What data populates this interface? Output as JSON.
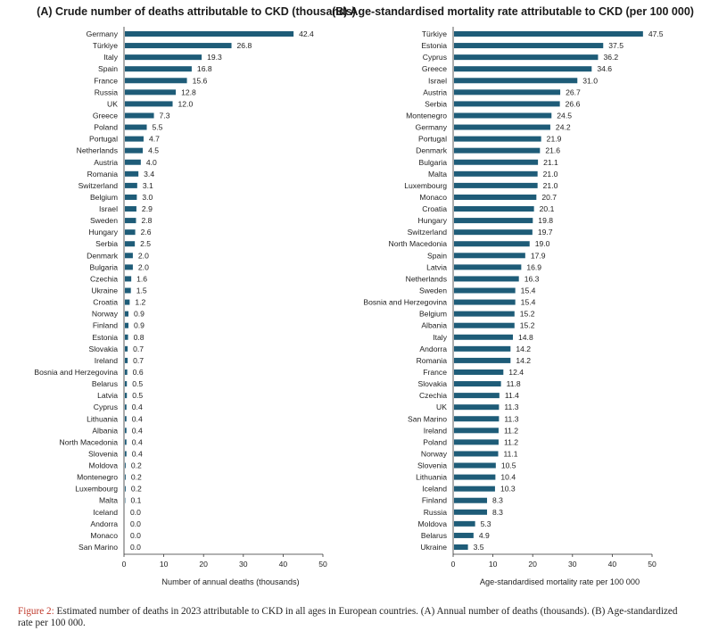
{
  "colors": {
    "bar": "#1e5c78",
    "axis": "#333333",
    "caption_label": "#c0392b"
  },
  "chart_data": [
    {
      "type": "bar",
      "orientation": "horizontal",
      "title": "(A) Crude number of deaths attributable to CKD (thousands)",
      "xlabel": "Number of annual deaths (thousands)",
      "xlim": [
        0,
        50
      ],
      "xticks": [
        0,
        10,
        20,
        30,
        40,
        50
      ],
      "grid": false,
      "categories": [
        "Germany",
        "Türkiye",
        "Italy",
        "Spain",
        "France",
        "Russia",
        "UK",
        "Greece",
        "Poland",
        "Portugal",
        "Netherlands",
        "Austria",
        "Romania",
        "Switzerland",
        "Belgium",
        "Israel",
        "Sweden",
        "Hungary",
        "Serbia",
        "Denmark",
        "Bulgaria",
        "Czechia",
        "Ukraine",
        "Croatia",
        "Norway",
        "Finland",
        "Estonia",
        "Slovakia",
        "Ireland",
        "Bosnia and Herzegovina",
        "Belarus",
        "Latvia",
        "Cyprus",
        "Lithuania",
        "Albania",
        "North Macedonia",
        "Slovenia",
        "Moldova",
        "Montenegro",
        "Luxembourg",
        "Malta",
        "Iceland",
        "Andorra",
        "Monaco",
        "San Marino"
      ],
      "values": [
        42.4,
        26.8,
        19.3,
        16.8,
        15.6,
        12.8,
        12.0,
        7.3,
        5.5,
        4.7,
        4.5,
        4.0,
        3.4,
        3.1,
        3.0,
        2.9,
        2.8,
        2.6,
        2.5,
        2.0,
        2.0,
        1.6,
        1.5,
        1.2,
        0.9,
        0.9,
        0.8,
        0.7,
        0.7,
        0.6,
        0.5,
        0.5,
        0.4,
        0.4,
        0.4,
        0.4,
        0.4,
        0.2,
        0.2,
        0.2,
        0.1,
        0.0,
        0.0,
        0.0,
        0.0
      ],
      "value_labels": [
        "42.4",
        "26.8",
        "19.3",
        "16.8",
        "15.6",
        "12.8",
        "12.0",
        "7.3",
        "5.5",
        "4.7",
        "4.5",
        "4.0",
        "3.4",
        "3.1",
        "3.0",
        "2.9",
        "2.8",
        "2.6",
        "2.5",
        "2.0",
        "2.0",
        "1.6",
        "1.5",
        "1.2",
        "0.9",
        "0.9",
        "0.8",
        "0.7",
        "0.7",
        "0.6",
        "0.5",
        "0.5",
        "0.4",
        "0.4",
        "0.4",
        "0.4",
        "0.4",
        "0.2",
        "0.2",
        "0.2",
        "0.1",
        "0.0",
        "0.0",
        "0.0",
        "0.0"
      ]
    },
    {
      "type": "bar",
      "orientation": "horizontal",
      "title": "(B) Age-standardised mortality rate attributable to CKD (per 100 000)",
      "xlabel": "Age-standardised mortality rate per 100 000",
      "xlim": [
        0,
        50
      ],
      "xticks": [
        0,
        10,
        20,
        30,
        40,
        50
      ],
      "grid": false,
      "categories": [
        "Türkiye",
        "Estonia",
        "Cyprus",
        "Greece",
        "Israel",
        "Austria",
        "Serbia",
        "Montenegro",
        "Germany",
        "Portugal",
        "Denmark",
        "Bulgaria",
        "Malta",
        "Luxembourg",
        "Monaco",
        "Croatia",
        "Hungary",
        "Switzerland",
        "North Macedonia",
        "Spain",
        "Latvia",
        "Netherlands",
        "Sweden",
        "Bosnia and Herzegovina",
        "Belgium",
        "Albania",
        "Italy",
        "Andorra",
        "Romania",
        "France",
        "Slovakia",
        "Czechia",
        "UK",
        "San Marino",
        "Ireland",
        "Poland",
        "Norway",
        "Slovenia",
        "Lithuania",
        "Iceland",
        "Finland",
        "Russia",
        "Moldova",
        "Belarus",
        "Ukraine"
      ],
      "values": [
        47.5,
        37.5,
        36.2,
        34.6,
        31.0,
        26.7,
        26.6,
        24.5,
        24.2,
        21.9,
        21.6,
        21.1,
        21.0,
        21.0,
        20.7,
        20.1,
        19.8,
        19.7,
        19.0,
        17.9,
        16.9,
        16.3,
        15.4,
        15.4,
        15.2,
        15.2,
        14.8,
        14.2,
        14.2,
        12.4,
        11.8,
        11.4,
        11.3,
        11.3,
        11.2,
        11.2,
        11.1,
        10.5,
        10.4,
        10.3,
        8.3,
        8.3,
        5.3,
        4.9,
        3.5
      ],
      "value_labels": [
        "47.5",
        "37.5",
        "36.2",
        "34.6",
        "31.0",
        "26.7",
        "26.6",
        "24.5",
        "24.2",
        "21.9",
        "21.6",
        "21.1",
        "21.0",
        "21.0",
        "20.7",
        "20.1",
        "19.8",
        "19.7",
        "19.0",
        "17.9",
        "16.9",
        "16.3",
        "15.4",
        "15.4",
        "15.2",
        "15.2",
        "14.8",
        "14.2",
        "14.2",
        "12.4",
        "11.8",
        "11.4",
        "11.3",
        "11.3",
        "11.2",
        "11.2",
        "11.1",
        "10.5",
        "10.4",
        "10.3",
        "8.3",
        "8.3",
        "5.3",
        "4.9",
        "3.5"
      ]
    }
  ],
  "caption": {
    "label": "Figure 2:",
    "text": " Estimated number of deaths in 2023 attributable to CKD in all ages in European countries. (A) Annual number of deaths (thousands). (B) Age-standardized rate per 100 000."
  }
}
